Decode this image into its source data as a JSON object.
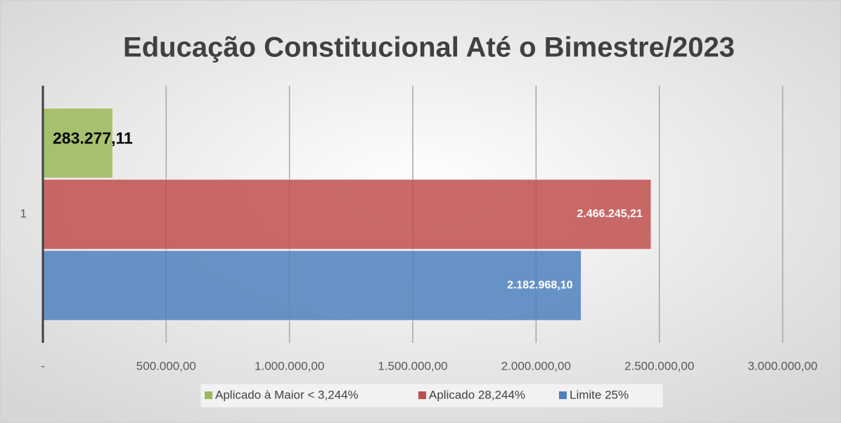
{
  "chart_data": {
    "type": "hbar",
    "title": "Educação Constitucional Até o Bimestre/2023",
    "categories": [
      "1"
    ],
    "series": [
      {
        "name": "Aplicado à Maior < 3,244%",
        "color": "#9bbb59",
        "values": [
          283277.11
        ],
        "value_labels": [
          "283.277,11"
        ]
      },
      {
        "name": "Aplicado 28,244%",
        "color": "#c0504d",
        "values": [
          2466245.21
        ],
        "value_labels": [
          "2.466.245,21"
        ]
      },
      {
        "name": "Limite 25%",
        "color": "#4f81bd",
        "values": [
          2182968.1
        ],
        "value_labels": [
          "2.182.968,10"
        ]
      }
    ],
    "xlim": [
      0,
      3000000
    ],
    "xticks": [
      {
        "value": 0,
        "label": "-"
      },
      {
        "value": 500000,
        "label": "500.000,00"
      },
      {
        "value": 1000000,
        "label": "1.000.000,00"
      },
      {
        "value": 1500000,
        "label": "1.500.000,00"
      },
      {
        "value": 2000000,
        "label": "2.000.000,00"
      },
      {
        "value": 2500000,
        "label": "2.500.000,00"
      },
      {
        "value": 3000000,
        "label": "3.000.000,00"
      }
    ],
    "grid": true,
    "legend": "bottom"
  }
}
